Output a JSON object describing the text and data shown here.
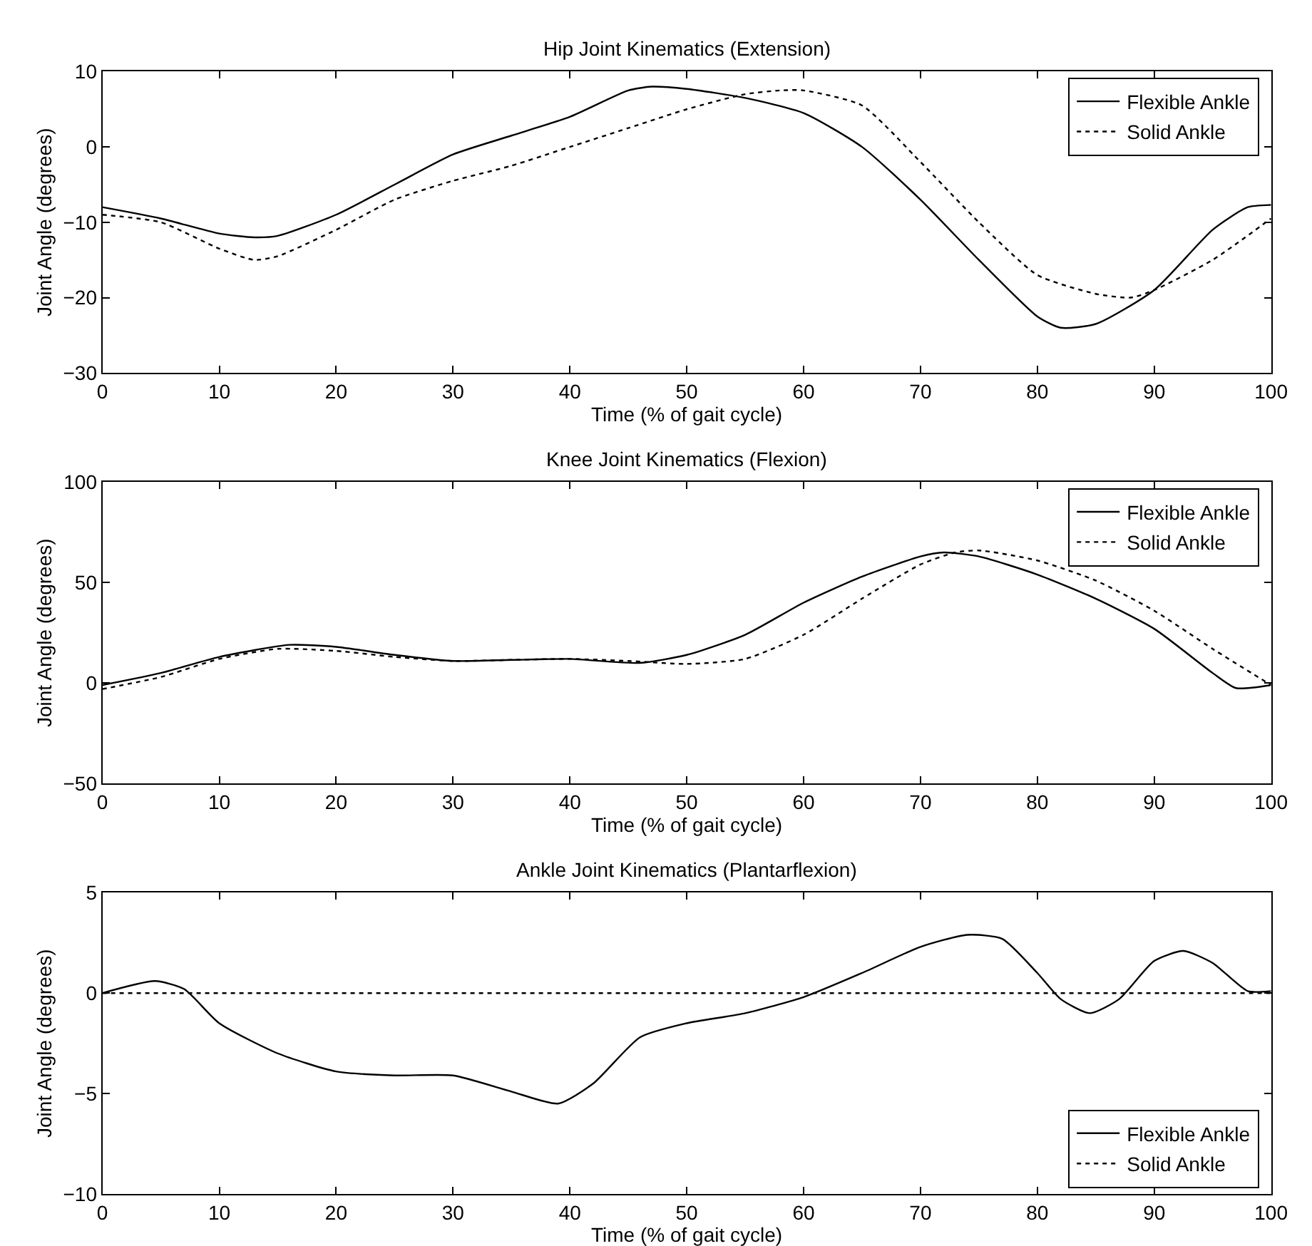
{
  "chart_data": [
    {
      "type": "line",
      "title": "Hip Joint Kinematics (Extension)",
      "xlabel": "Time (% of gait cycle)",
      "ylabel": "Joint Angle (degrees)",
      "xlim": [
        0,
        100
      ],
      "xticks": [
        0,
        10,
        20,
        30,
        40,
        50,
        60,
        70,
        80,
        90,
        100
      ],
      "ylim": [
        -30,
        10
      ],
      "yticks": [
        -30,
        -20,
        -10,
        0,
        10
      ],
      "grid": false,
      "legend": "top right",
      "marker": "none",
      "series": [
        {
          "name": "Flexible Ankle",
          "color": "#000000",
          "line_style": "solid",
          "x": [
            0,
            5,
            10,
            13,
            15,
            20,
            25,
            30,
            35,
            40,
            45,
            47,
            50,
            55,
            60,
            65,
            70,
            75,
            80,
            82,
            85,
            90,
            95,
            98,
            100
          ],
          "values": [
            -8,
            -9.5,
            -11.5,
            -12,
            -11.8,
            -9,
            -5,
            -1,
            1.5,
            4,
            7.5,
            8,
            7.7,
            6.5,
            4.5,
            0,
            -7,
            -15,
            -22.5,
            -24,
            -23.5,
            -19,
            -11,
            -8,
            -7.7
          ]
        },
        {
          "name": "Solid Ankle",
          "color": "#000000",
          "line_style": "dotted",
          "x": [
            0,
            5,
            10,
            13,
            15,
            20,
            25,
            30,
            35,
            40,
            45,
            50,
            55,
            58,
            60,
            65,
            70,
            75,
            80,
            85,
            88,
            90,
            95,
            100
          ],
          "values": [
            -9,
            -10,
            -13.5,
            -15,
            -14.5,
            -11,
            -7,
            -4.5,
            -2.5,
            0,
            2.5,
            5,
            7,
            7.5,
            7.5,
            5.5,
            -2,
            -10,
            -17,
            -19.5,
            -20,
            -19,
            -15,
            -9.5
          ]
        }
      ]
    },
    {
      "type": "line",
      "title": "Knee Joint Kinematics (Flexion)",
      "xlabel": "Time (% of gait cycle)",
      "ylabel": "Joint Angle (degrees)",
      "xlim": [
        0,
        100
      ],
      "xticks": [
        0,
        10,
        20,
        30,
        40,
        50,
        60,
        70,
        80,
        90,
        100
      ],
      "ylim": [
        -50,
        100
      ],
      "yticks": [
        -50,
        0,
        50,
        100
      ],
      "grid": false,
      "legend": "top right",
      "marker": "none",
      "series": [
        {
          "name": "Flexible Ankle",
          "color": "#000000",
          "line_style": "solid",
          "x": [
            0,
            5,
            10,
            16,
            20,
            25,
            30,
            35,
            40,
            46,
            50,
            55,
            60,
            65,
            70,
            72,
            75,
            80,
            85,
            90,
            95,
            97,
            100
          ],
          "values": [
            -1,
            5,
            13,
            19,
            18,
            14,
            11,
            11.5,
            12,
            10,
            14,
            24,
            40,
            53,
            63,
            65,
            63,
            54,
            42,
            27,
            5,
            -2.5,
            -1
          ]
        },
        {
          "name": "Solid Ankle",
          "color": "#000000",
          "line_style": "dotted",
          "x": [
            0,
            5,
            10,
            15,
            20,
            25,
            30,
            35,
            40,
            45,
            50,
            55,
            60,
            65,
            70,
            73,
            75,
            80,
            85,
            90,
            95,
            100
          ],
          "values": [
            -3,
            3,
            12,
            17,
            16,
            13,
            11,
            11.5,
            12,
            11,
            9.5,
            12,
            24,
            42,
            59,
            65,
            66,
            61,
            51,
            36,
            17,
            -1
          ]
        }
      ]
    },
    {
      "type": "line",
      "title": "Ankle Joint Kinematics (Plantarflexion)",
      "xlabel": "Time (% of gait cycle)",
      "ylabel": "Joint Angle (degrees)",
      "xlim": [
        0,
        100
      ],
      "xticks": [
        0,
        10,
        20,
        30,
        40,
        50,
        60,
        70,
        80,
        90,
        100
      ],
      "ylim": [
        -10,
        5
      ],
      "yticks": [
        -10,
        -5,
        0,
        5
      ],
      "grid": false,
      "legend": "bottom right",
      "marker": "none",
      "series": [
        {
          "name": "Flexible Ankle",
          "color": "#000000",
          "line_style": "solid",
          "x": [
            0,
            4.5,
            7,
            10,
            15,
            20,
            25,
            30,
            35,
            39,
            42,
            46,
            50,
            55,
            60,
            65,
            70,
            74,
            77,
            80,
            82,
            84.5,
            87,
            90,
            92.5,
            95,
            98,
            100
          ],
          "values": [
            0,
            0.6,
            0.2,
            -1.5,
            -3,
            -3.9,
            -4.1,
            -4.1,
            -4.9,
            -5.5,
            -4.5,
            -2.2,
            -1.5,
            -1,
            -0.2,
            1,
            2.3,
            2.9,
            2.7,
            1,
            -0.3,
            -1,
            -0.3,
            1.6,
            2.1,
            1.5,
            0.1,
            0.1
          ]
        },
        {
          "name": "Solid Ankle",
          "color": "#000000",
          "line_style": "dotted",
          "x": [
            0,
            100
          ],
          "values": [
            0,
            0
          ]
        }
      ]
    }
  ]
}
